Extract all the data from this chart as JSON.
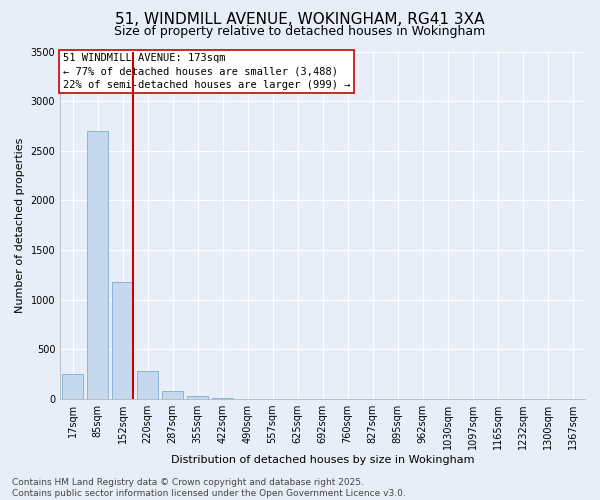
{
  "title_line1": "51, WINDMILL AVENUE, WOKINGHAM, RG41 3XA",
  "title_line2": "Size of property relative to detached houses in Wokingham",
  "xlabel": "Distribution of detached houses by size in Wokingham",
  "ylabel": "Number of detached properties",
  "bar_labels": [
    "17sqm",
    "85sqm",
    "152sqm",
    "220sqm",
    "287sqm",
    "355sqm",
    "422sqm",
    "490sqm",
    "557sqm",
    "625sqm",
    "692sqm",
    "760sqm",
    "827sqm",
    "895sqm",
    "962sqm",
    "1030sqm",
    "1097sqm",
    "1165sqm",
    "1232sqm",
    "1300sqm",
    "1367sqm"
  ],
  "bar_values": [
    250,
    2700,
    1180,
    280,
    80,
    30,
    15,
    5,
    0,
    0,
    0,
    0,
    0,
    0,
    0,
    0,
    0,
    0,
    0,
    0,
    0
  ],
  "bar_color": "#c5d8ee",
  "bar_edge_color": "#7bafd4",
  "vline_color": "#cc0000",
  "annotation_text": "51 WINDMILL AVENUE: 173sqm\n← 77% of detached houses are smaller (3,488)\n22% of semi-detached houses are larger (999) →",
  "annotation_box_color": "#ffffff",
  "annotation_box_edge": "#cc0000",
  "ylim": [
    0,
    3500
  ],
  "yticks": [
    0,
    500,
    1000,
    1500,
    2000,
    2500,
    3000,
    3500
  ],
  "background_color": "#e8eef8",
  "plot_bg_color": "#e8eef8",
  "grid_color": "#ffffff",
  "footer_line1": "Contains HM Land Registry data © Crown copyright and database right 2025.",
  "footer_line2": "Contains public sector information licensed under the Open Government Licence v3.0.",
  "title_fontsize": 11,
  "subtitle_fontsize": 9,
  "axis_label_fontsize": 8,
  "tick_fontsize": 7,
  "annotation_fontsize": 7.5,
  "footer_fontsize": 6.5
}
